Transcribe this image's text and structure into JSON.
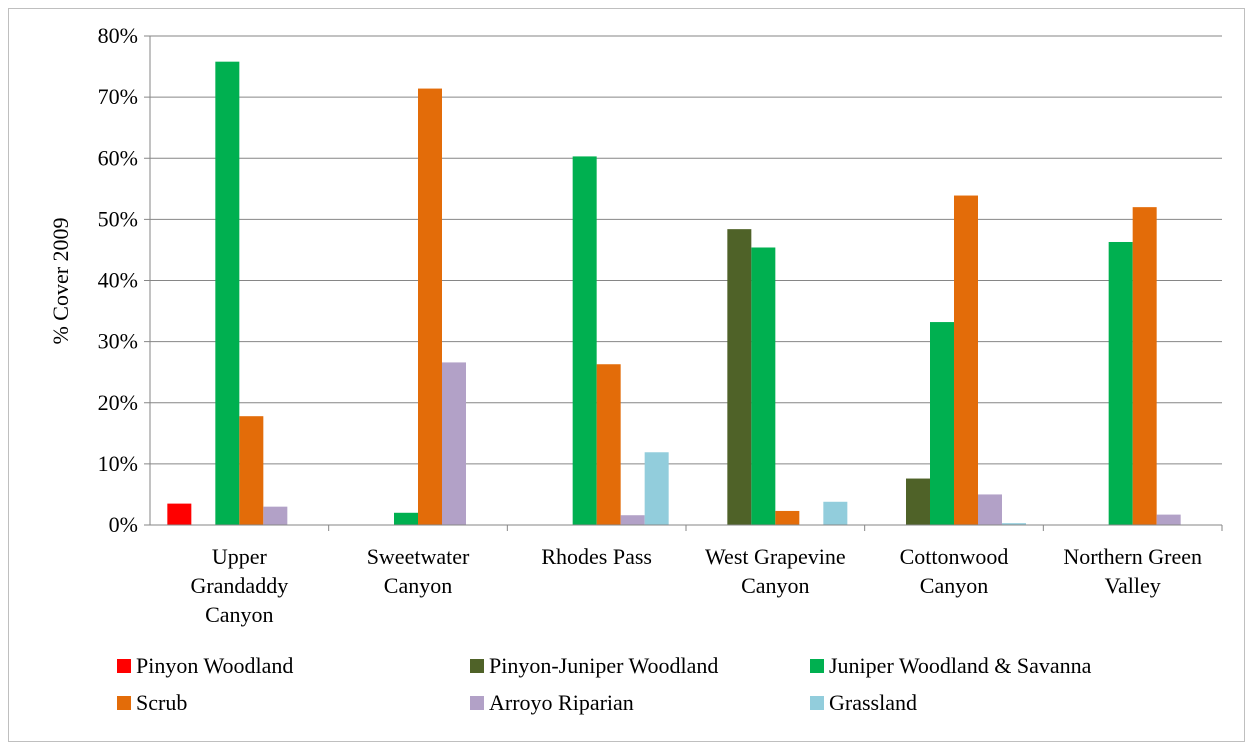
{
  "chart_data": {
    "type": "bar",
    "title": "",
    "xlabel": "",
    "ylabel": "% Cover 2009",
    "ylim": [
      0,
      80
    ],
    "y_ticks": [
      "0%",
      "10%",
      "20%",
      "30%",
      "40%",
      "50%",
      "60%",
      "70%",
      "80%"
    ],
    "y_tick_values": [
      0,
      10,
      20,
      30,
      40,
      50,
      60,
      70,
      80
    ],
    "grid": true,
    "legend_position": "bottom",
    "categories": [
      [
        "Upper",
        "Grandaddy",
        "Canyon"
      ],
      [
        "Sweetwater",
        "Canyon"
      ],
      [
        "Rhodes Pass"
      ],
      [
        "West Grapevine",
        "Canyon"
      ],
      [
        "Cottonwood",
        "Canyon"
      ],
      [
        "Northern Green",
        "Valley"
      ]
    ],
    "series": [
      {
        "name": "Pinyon Woodland",
        "color": "#ff0000",
        "values": [
          3.5,
          0,
          0,
          0,
          0,
          0
        ]
      },
      {
        "name": "Pinyon-Juniper Woodland",
        "color": "#4f6228",
        "values": [
          0,
          0,
          0,
          48.4,
          7.6,
          0
        ]
      },
      {
        "name": "Juniper Woodland & Savanna",
        "color": "#00b050",
        "values": [
          75.8,
          2.0,
          60.3,
          45.4,
          33.2,
          46.3
        ]
      },
      {
        "name": "Scrub",
        "color": "#e36c09",
        "values": [
          17.8,
          71.4,
          26.3,
          2.3,
          53.9,
          52.0
        ]
      },
      {
        "name": "Arroyo Riparian",
        "color": "#b2a1c7",
        "values": [
          3.0,
          26.6,
          1.6,
          0,
          5.0,
          1.7
        ]
      },
      {
        "name": "Grassland",
        "color": "#92cddc",
        "values": [
          0,
          0,
          11.9,
          3.8,
          0.3,
          0
        ]
      }
    ]
  }
}
